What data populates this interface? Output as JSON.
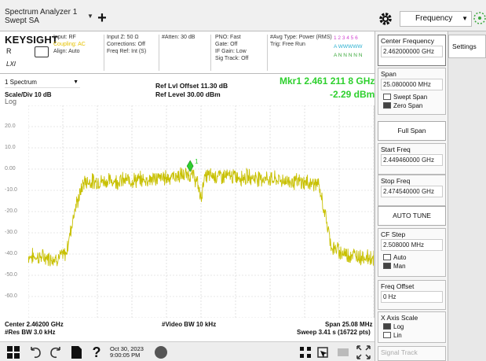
{
  "topbar": {
    "title_line1": "Spectrum Analyzer 1",
    "title_line2": "Swept SA",
    "add_label": "+",
    "mode_label": "Frequency"
  },
  "infobar": {
    "logo": "KEYSIGHT",
    "r_label": "R",
    "lxi_label": "LXI",
    "col1": [
      "Input: RF",
      "Coupling: AC",
      "Align: Auto"
    ],
    "col2": [
      "Input Z: 50 Ω",
      "Corrections: Off",
      "Freq Ref: Int (S)"
    ],
    "col3": [
      "#Atten: 30 dB"
    ],
    "col4": [
      "PNO: Fast",
      "Gate: Off",
      "IF Gain: Low",
      "Sig Track: Off"
    ],
    "col5": [
      "#Avg Type: Power (RMS)",
      "Trig: Free Run"
    ],
    "trace_nums": "1 2 3 4 5 6",
    "trace_types": "A WWWWW",
    "trace_det": "A N N N N N"
  },
  "trace_header": {
    "window": "1 Spectrum",
    "scale": "Scale/Div 10 dB",
    "log": "Log",
    "ref_offset": "Ref Lvl Offset 11.30 dB",
    "ref_level": "Ref Level 30.00 dBm",
    "marker_freq": "Mkr1  2.461 211 8 GHz",
    "marker_amp": "-2.29 dBm",
    "marker_label": "1"
  },
  "y_labels": [
    "20.0",
    "10.0",
    "0.00",
    "-10.0",
    "-20.0",
    "-30.0",
    "-40.0",
    "-50.0",
    "-60.0"
  ],
  "bottom": {
    "center": "Center 2.46200 GHz",
    "res_bw": "#Res BW 3.0 kHz",
    "video_bw": "#Video BW 10 kHz",
    "span": "Span 25.08 MHz",
    "sweep": "Sweep 3.41 s (16722 pts)"
  },
  "taskbar": {
    "date": "Oct 30, 2023",
    "time": "9:00:05 PM"
  },
  "panel": {
    "center_freq_label": "Center Frequency",
    "center_freq_value": "2.462000000 GHz",
    "span_label": "Span",
    "span_value": "25.0800000 MHz",
    "swept_span": "Swept Span",
    "zero_span": "Zero Span",
    "full_span": "Full Span",
    "start_label": "Start Freq",
    "start_value": "2.449460000 GHz",
    "stop_label": "Stop Freq",
    "stop_value": "2.474540000 GHz",
    "auto_tune": "AUTO TUNE",
    "cf_step_label": "CF Step",
    "cf_step_value": "2.508000 MHz",
    "auto": "Auto",
    "man": "Man",
    "freq_offset_label": "Freq Offset",
    "freq_offset_value": "0 Hz",
    "xaxis_label": "X Axis Scale",
    "log": "Log",
    "lin": "Lin",
    "signal_track": "Signal Track",
    "settings_tab": "Settings"
  },
  "chart_data": {
    "type": "line",
    "title": "",
    "xlabel": "",
    "ylabel": "",
    "x_center_ghz": 2.462,
    "x_span_mhz": 25.08,
    "xlim_ghz": [
      2.44946,
      2.47454
    ],
    "ylim_dbm": [
      -70,
      30
    ],
    "y_div_db": 10,
    "grid": true,
    "series": [
      {
        "color": "#c8c000",
        "x_mhz_offset": [
          -12.54,
          -10.5,
          -9.8,
          -9.2,
          -8.5,
          -4.0,
          -0.8,
          -0.5,
          -0.2,
          0,
          0.2,
          0.5,
          4.0,
          8.5,
          8.9,
          9.5,
          10.5,
          12.54
        ],
        "y": [
          -41,
          -42,
          -40,
          -20,
          -6,
          -5,
          -2.5,
          -3.5,
          -8,
          -14,
          -5,
          -3,
          -4,
          -7,
          -18,
          -37,
          -40,
          -42
        ]
      }
    ],
    "marker": {
      "freq_ghz": 2.4612118,
      "amp_dbm": -2.29
    }
  }
}
